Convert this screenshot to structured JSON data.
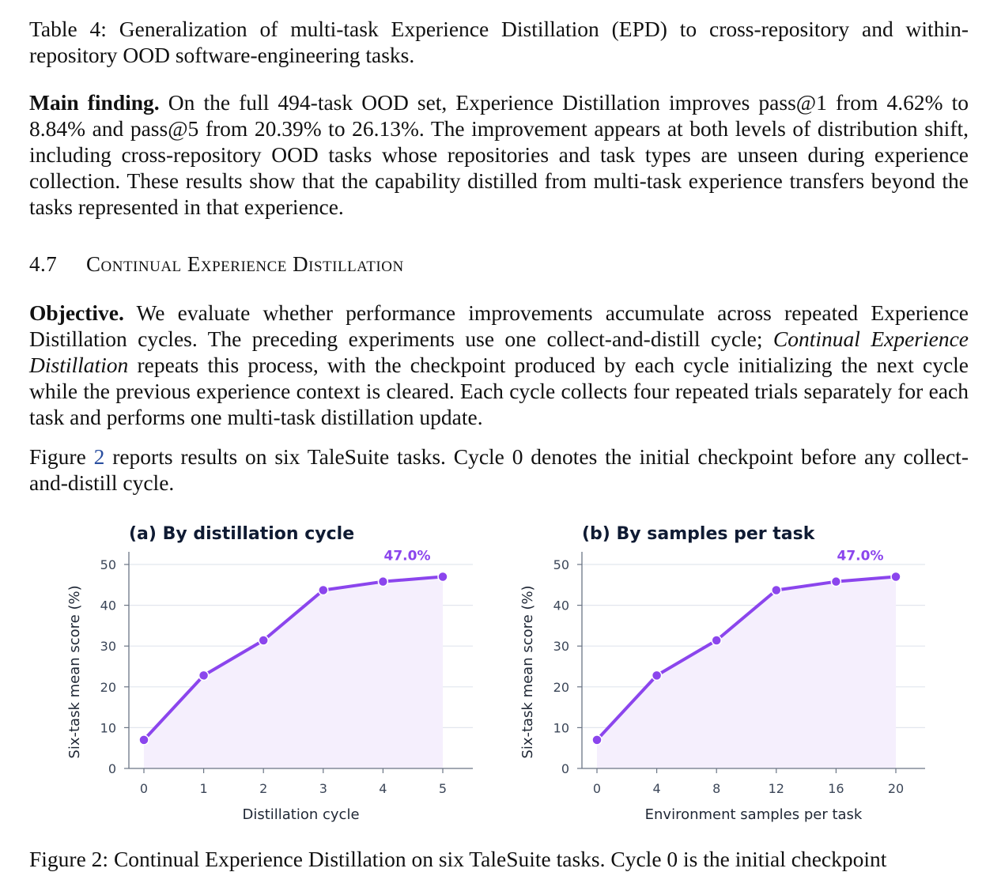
{
  "caption": "Table 4: Generalization of multi-task Experience Distillation (EPD) to cross-repository and within-repository OOD software-engineering tasks.",
  "main_finding": {
    "label": "Main finding.",
    "text": " On the full 494-task OOD set, Experience Distillation improves pass@1 from 4.62% to 8.84% and pass@5 from 20.39% to 26.13%. The improvement appears at both levels of distribution shift, including cross-repository OOD tasks whose repositories and task types are unseen during experience collection. These results show that the capability distilled from multi-task experience transfers beyond the tasks represented in that experience."
  },
  "section": {
    "number": "4.7",
    "title": "Continual Experience Distillation"
  },
  "objective": {
    "label": "Objective.",
    "text_1": " We evaluate whether performance improvements accumulate across repeated Experience Distillation cycles. The preceding experiments use one collect-and-distill cycle; ",
    "emph": "Continual Experience Distillation",
    "text_2": " repeats this process, with the checkpoint produced by each cycle initializing the next cycle while the previous experience context is cleared. Each cycle collects four repeated trials separately for each task and performs one multi-task distillation update."
  },
  "figure_ref": {
    "before": "Figure ",
    "ref": "2",
    "after": " reports results on six TaleSuite tasks. Cycle 0 denotes the initial checkpoint before any collect-and-distill cycle."
  },
  "bottom_cut": "Figure 2: Continual Experience Distillation on six TaleSuite tasks. Cycle 0 is the initial checkpoint",
  "colors": {
    "line": "#8b45ed",
    "fill": "#f5effd",
    "grid": "#e2e6ee",
    "axis": "#6b7585",
    "title": "#0f1b33"
  },
  "chart_data": [
    {
      "type": "line",
      "title": "(a) By distillation cycle",
      "xlabel": "Distillation cycle",
      "ylabel": "Six-task mean score (%)",
      "x": [
        0,
        1,
        2,
        3,
        4,
        5
      ],
      "values": [
        7.0,
        22.8,
        31.4,
        43.7,
        45.8,
        47.0
      ],
      "xlim": [
        0,
        5
      ],
      "ylim": [
        0,
        50
      ],
      "yticks": [
        0,
        10,
        20,
        30,
        40,
        50
      ],
      "xticks": [
        0,
        1,
        2,
        3,
        4,
        5
      ],
      "annotation": "47.0%",
      "grid": true
    },
    {
      "type": "line",
      "title": "(b) By samples per task",
      "xlabel": "Environment samples per task",
      "ylabel": "Six-task mean score (%)",
      "x": [
        0,
        4,
        8,
        12,
        16,
        20
      ],
      "values": [
        7.0,
        22.8,
        31.4,
        43.7,
        45.8,
        47.0
      ],
      "xlim": [
        0,
        20
      ],
      "ylim": [
        0,
        50
      ],
      "yticks": [
        0,
        10,
        20,
        30,
        40,
        50
      ],
      "xticks": [
        0,
        4,
        8,
        12,
        16,
        20
      ],
      "annotation": "47.0%",
      "grid": true
    }
  ]
}
